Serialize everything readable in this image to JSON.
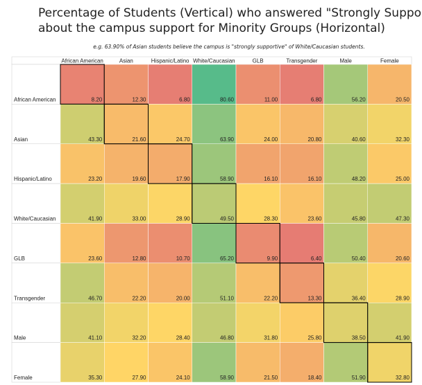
{
  "chart_data": {
    "type": "heatmap",
    "title": "Percentage of Students (Vertical) who answered \"Strongly Supportive\" when asked about the campus support for Minority Groups (Horizontal)",
    "subtitle": "e.g. 63.90% of Asian students believe the campus is \"strongly supportive\" of White/Caucasian students.",
    "x": [
      "African American",
      "Asian",
      "Hispanic/Latino",
      "White/Caucasian",
      "GLB",
      "Transgender",
      "Male",
      "Female"
    ],
    "y": [
      "African American",
      "Asian",
      "Hispanic/Latino",
      "White/Caucasian",
      "GLB",
      "Transgender",
      "Male",
      "Female"
    ],
    "values": [
      [
        8.2,
        12.3,
        6.8,
        80.6,
        11,
        6.8,
        56.2,
        20.5
      ],
      [
        43.3,
        21.6,
        24.7,
        63.9,
        24,
        20.8,
        40.6,
        32.3
      ],
      [
        23.2,
        19.6,
        17.9,
        58.9,
        16.1,
        16.1,
        48.2,
        25
      ],
      [
        41.9,
        33,
        28.9,
        49.5,
        28.3,
        23.6,
        45.8,
        47.3
      ],
      [
        23.6,
        12.8,
        10.7,
        65.2,
        9.9,
        6.4,
        50.4,
        20.6
      ],
      [
        46.7,
        22.2,
        20,
        51.1,
        22.2,
        13.3,
        36.4,
        28.9
      ],
      [
        41.1,
        32.2,
        28.4,
        46.8,
        31.8,
        25.8,
        38.5,
        41.9
      ],
      [
        35.3,
        27.9,
        24.1,
        58.9,
        21.5,
        18.4,
        51.9,
        32.8
      ]
    ],
    "value_labels": [
      [
        "8.20",
        "12.30",
        "6.80",
        "80.60",
        "11.00",
        "6.80",
        "56.20",
        "20.50"
      ],
      [
        "43.30",
        "21.60",
        "24.70",
        "63.90",
        "24.00",
        "20.80",
        "40.60",
        "32.30"
      ],
      [
        "23.20",
        "19.60",
        "17.90",
        "58.90",
        "16.10",
        "16.10",
        "48.20",
        "25.00"
      ],
      [
        "41.90",
        "33.00",
        "28.90",
        "49.50",
        "28.30",
        "23.60",
        "45.80",
        "47.30"
      ],
      [
        "23.60",
        "12.80",
        "10.70",
        "65.20",
        "9.90",
        "6.40",
        "50.40",
        "20.60"
      ],
      [
        "46.70",
        "22.20",
        "20.00",
        "51.10",
        "22.20",
        "13.30",
        "36.40",
        "28.90"
      ],
      [
        "41.10",
        "32.20",
        "28.40",
        "46.80",
        "31.80",
        "25.80",
        "38.50",
        "41.90"
      ],
      [
        "35.30",
        "27.90",
        "24.10",
        "58.90",
        "21.50",
        "18.40",
        "51.90",
        "32.80"
      ]
    ],
    "colors": {
      "min": "#e67c73",
      "mid": "#ffd666",
      "max": "#57bb8a"
    },
    "highlight_diagonal": true
  }
}
